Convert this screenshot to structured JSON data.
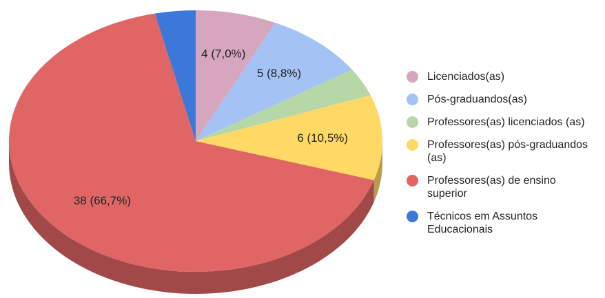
{
  "chart_data": {
    "type": "pie",
    "categories": [
      "Licenciados(as)",
      "Pós-graduandos(as)",
      "Professores(as) licenciados (as)",
      "Professores(as) pós-graduandos (as)",
      "Professores(as) de ensino superior",
      "Técnicos em Assuntos Educacionais"
    ],
    "values": [
      4,
      5,
      2,
      6,
      38,
      2
    ],
    "value_labels": [
      "4 (7,0%)",
      "5 (8,8%)",
      null,
      "6 (10,5%)",
      "38 (66,7%)",
      null
    ],
    "colors": [
      "#d5a6bd",
      "#a4c2f4",
      "#b6d7a8",
      "#ffd966",
      "#e06666",
      "#3c78d8"
    ],
    "legend": "right",
    "three_d": true
  }
}
